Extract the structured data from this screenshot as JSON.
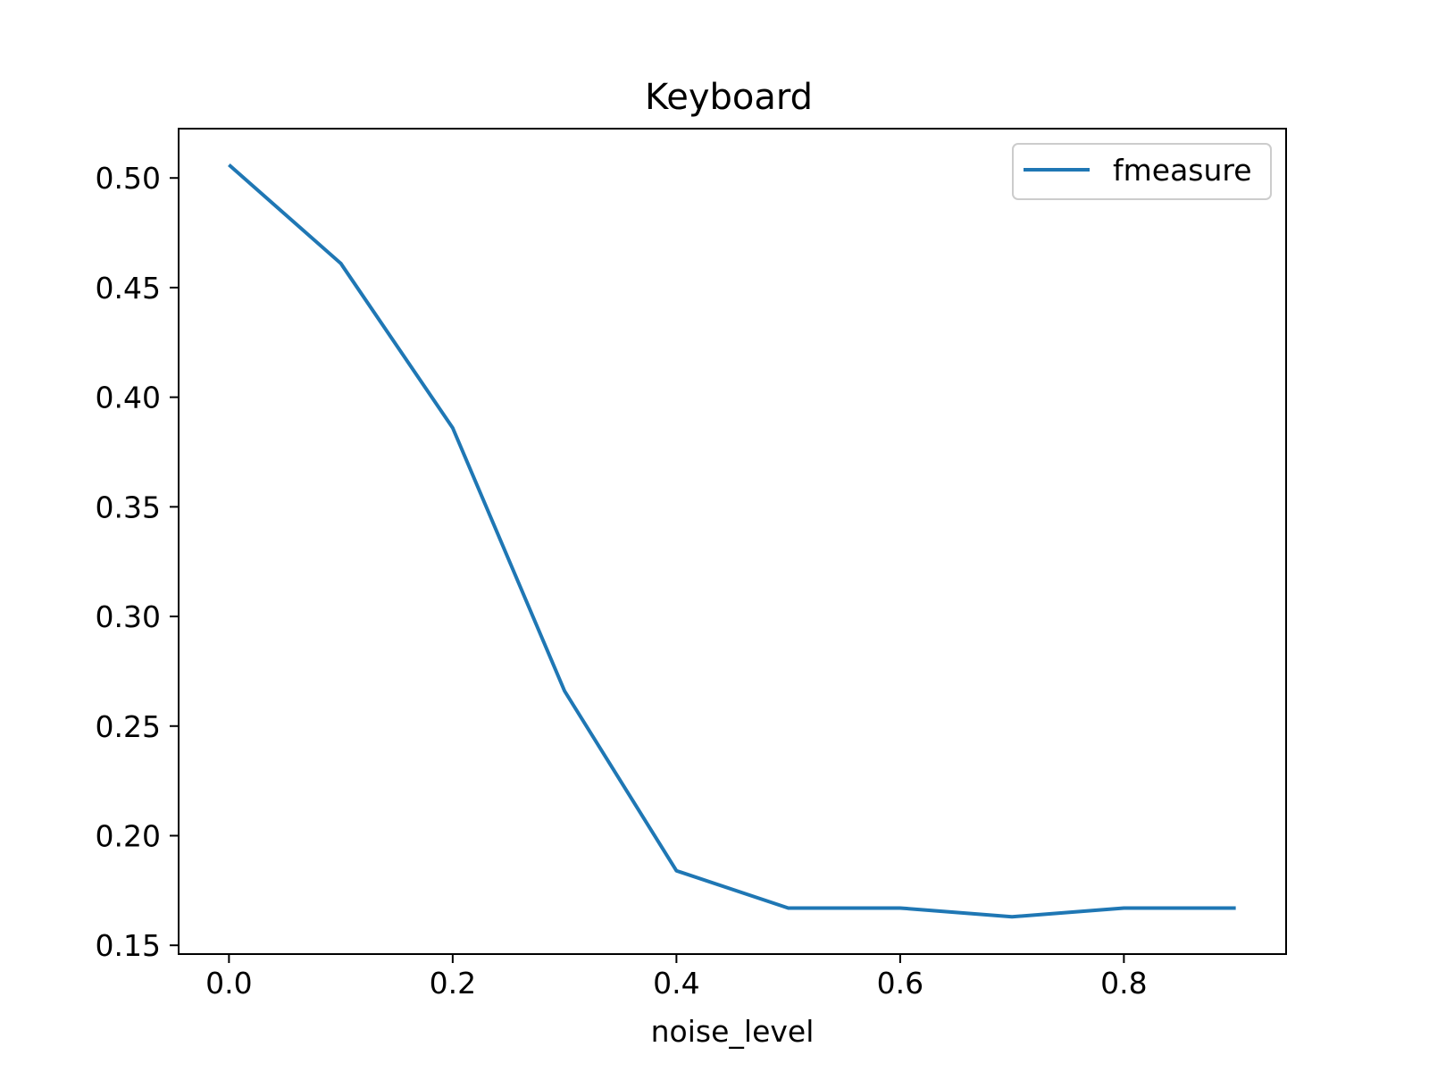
{
  "chart_data": {
    "type": "line",
    "title": "Keyboard",
    "xlabel": "noise_level",
    "ylabel": "",
    "xlim": [
      -0.045,
      0.945
    ],
    "ylim": [
      0.146,
      0.5225
    ],
    "x_ticks": [
      0.0,
      0.2,
      0.4,
      0.6,
      0.8
    ],
    "x_tick_labels": [
      "0.0",
      "0.2",
      "0.4",
      "0.6",
      "0.8"
    ],
    "y_ticks": [
      0.15,
      0.2,
      0.25,
      0.3,
      0.35,
      0.4,
      0.45,
      0.5
    ],
    "y_tick_labels": [
      "0.15",
      "0.20",
      "0.25",
      "0.30",
      "0.35",
      "0.40",
      "0.45",
      "0.50"
    ],
    "grid": false,
    "legend_position": "top-right",
    "series": [
      {
        "name": "fmeasure",
        "color": "#1f77b4",
        "x": [
          0.0,
          0.1,
          0.2,
          0.3,
          0.4,
          0.5,
          0.6,
          0.7,
          0.8,
          0.9
        ],
        "y": [
          0.506,
          0.461,
          0.386,
          0.266,
          0.184,
          0.167,
          0.167,
          0.163,
          0.167,
          0.167
        ]
      }
    ]
  }
}
